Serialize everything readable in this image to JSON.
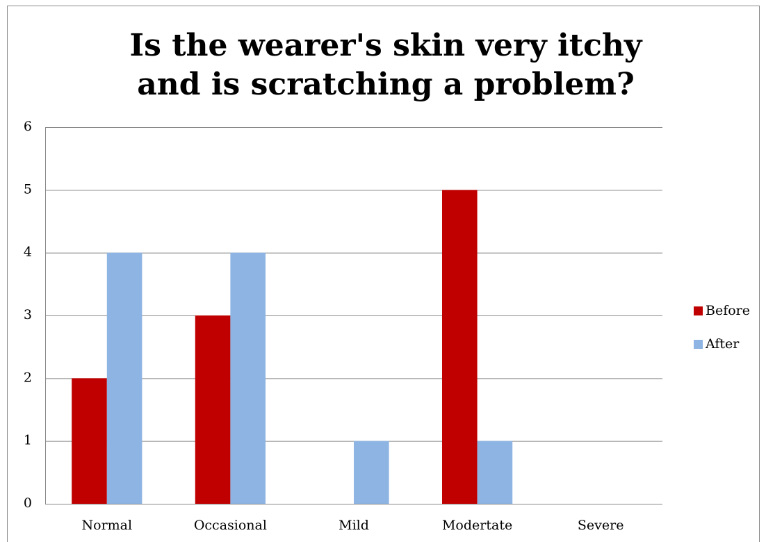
{
  "chart_data": {
    "type": "bar",
    "title": "Is the wearer's skin very itchy and is scratching a problem?",
    "categories": [
      "Normal",
      "Occasional",
      "Mild",
      "Modertate",
      "Severe"
    ],
    "series": [
      {
        "name": "Before",
        "color": "#c00000",
        "values": [
          2,
          3,
          0,
          5,
          0
        ]
      },
      {
        "name": "After",
        "color": "#8eb4e3",
        "values": [
          4,
          4,
          1,
          1,
          0
        ]
      }
    ],
    "ylim": [
      0,
      6
    ],
    "yticks": [
      0,
      1,
      2,
      3,
      4,
      5,
      6
    ],
    "grid": true,
    "legend": "right"
  }
}
